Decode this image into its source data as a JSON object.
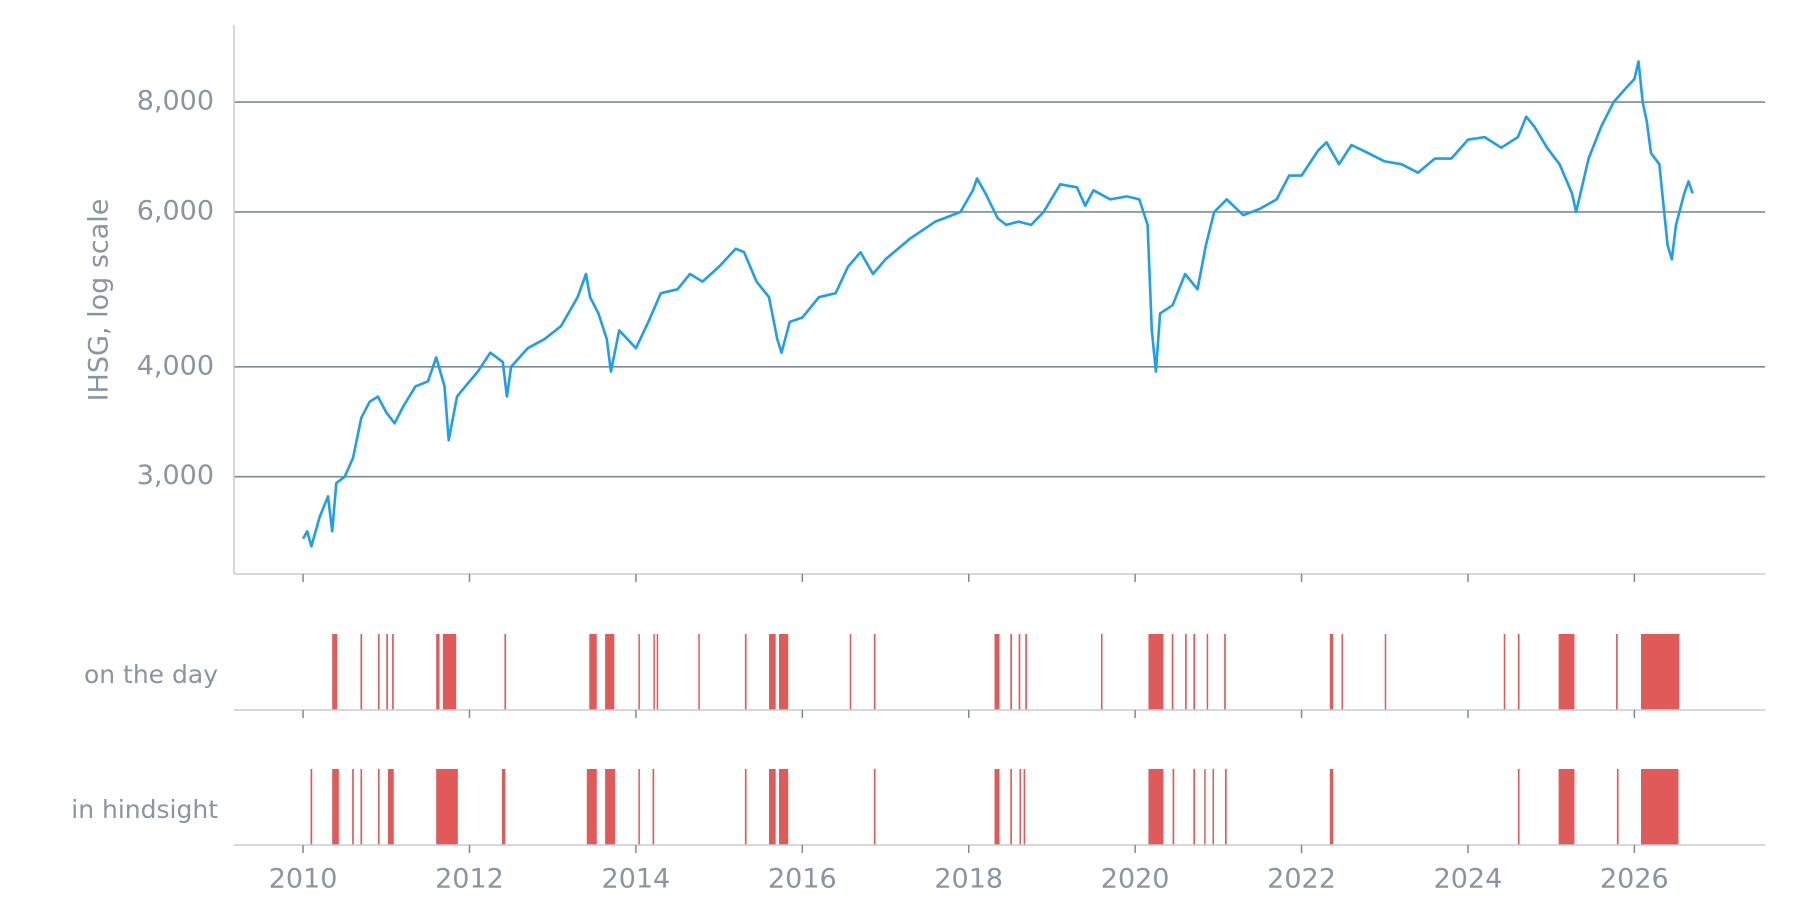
{
  "chart_data": {
    "type": "line",
    "log_y": true,
    "grid": true,
    "ylabel": "IHSG, log scale",
    "xlim": [
      2009.17,
      2027.57
    ],
    "xticks": [
      2010,
      2012,
      2014,
      2016,
      2018,
      2020,
      2022,
      2024,
      2026
    ],
    "ylim": [
      2325,
      9790
    ],
    "yticks": [
      {
        "value": 3000,
        "label": "3,000"
      },
      {
        "value": 4000,
        "label": "4,000"
      },
      {
        "value": 6000,
        "label": "6,000"
      },
      {
        "value": 8000,
        "label": "8,000"
      }
    ],
    "series": [
      {
        "color": "#1f9fe8",
        "x": [
          2010.0,
          2010.05,
          2010.1,
          2010.2,
          2010.3,
          2010.35,
          2010.4,
          2010.5,
          2010.6,
          2010.7,
          2010.8,
          2010.9,
          2011.0,
          2011.1,
          2011.2,
          2011.35,
          2011.5,
          2011.6,
          2011.7,
          2011.75,
          2011.85,
          2011.95,
          2012.1,
          2012.25,
          2012.4,
          2012.45,
          2012.5,
          2012.7,
          2012.9,
          2013.1,
          2013.3,
          2013.4,
          2013.45,
          2013.55,
          2013.65,
          2013.7,
          2013.8,
          2013.95,
          2014.0,
          2014.15,
          2014.3,
          2014.5,
          2014.65,
          2014.8,
          2015.0,
          2015.2,
          2015.3,
          2015.45,
          2015.6,
          2015.7,
          2015.75,
          2015.85,
          2016.0,
          2016.2,
          2016.4,
          2016.55,
          2016.7,
          2016.85,
          2017.0,
          2017.3,
          2017.6,
          2017.9,
          2018.05,
          2018.1,
          2018.2,
          2018.35,
          2018.45,
          2018.6,
          2018.75,
          2018.9,
          2019.1,
          2019.3,
          2019.4,
          2019.5,
          2019.7,
          2019.9,
          2020.05,
          2020.15,
          2020.2,
          2020.25,
          2020.3,
          2020.45,
          2020.6,
          2020.75,
          2020.85,
          2020.95,
          2021.1,
          2021.3,
          2021.5,
          2021.7,
          2021.85,
          2022.0,
          2022.2,
          2022.3,
          2022.45,
          2022.6,
          2022.8,
          2023.0,
          2023.2,
          2023.4,
          2023.6,
          2023.8,
          2024.0,
          2024.2,
          2024.4,
          2024.6,
          2024.7,
          2024.8,
          2024.95,
          2025.1,
          2025.25,
          2025.3,
          2025.45,
          2025.6,
          2025.75,
          2025.9,
          2026.0,
          2026.05,
          2026.1,
          2026.15,
          2026.2,
          2026.3,
          2026.4,
          2026.45,
          2026.5,
          2026.6,
          2026.65,
          2026.7
        ],
        "values": [
          2550,
          2600,
          2500,
          2700,
          2850,
          2600,
          2950,
          3000,
          3150,
          3500,
          3650,
          3700,
          3550,
          3450,
          3600,
          3800,
          3850,
          4100,
          3800,
          3300,
          3700,
          3800,
          3950,
          4150,
          4050,
          3700,
          4000,
          4200,
          4300,
          4450,
          4800,
          5100,
          4800,
          4600,
          4300,
          3950,
          4400,
          4250,
          4200,
          4500,
          4850,
          4900,
          5100,
          5000,
          5200,
          5450,
          5400,
          5000,
          4800,
          4300,
          4150,
          4500,
          4550,
          4800,
          4850,
          5200,
          5400,
          5100,
          5300,
          5600,
          5850,
          6000,
          6350,
          6550,
          6300,
          5900,
          5800,
          5850,
          5800,
          6000,
          6450,
          6400,
          6100,
          6350,
          6200,
          6250,
          6200,
          5800,
          4400,
          3950,
          4600,
          4700,
          5100,
          4900,
          5500,
          6000,
          6200,
          5950,
          6050,
          6200,
          6600,
          6600,
          7050,
          7200,
          6800,
          7150,
          7000,
          6850,
          6800,
          6650,
          6900,
          6900,
          7250,
          7300,
          7100,
          7300,
          7700,
          7500,
          7100,
          6800,
          6300,
          6000,
          6900,
          7500,
          8000,
          8300,
          8500,
          8900,
          8000,
          7600,
          7000,
          6800,
          5500,
          5300,
          5800,
          6300,
          6500,
          6300
        ]
      }
    ],
    "strips": [
      {
        "name": "on the day",
        "color": "#e05a5a",
        "spans": [
          [
            2010.35,
            2010.41
          ],
          [
            2010.69,
            2010.71
          ],
          [
            2010.9,
            2010.92
          ],
          [
            2011.0,
            2011.02
          ],
          [
            2011.07,
            2011.09
          ],
          [
            2011.6,
            2011.64
          ],
          [
            2011.68,
            2011.84
          ],
          [
            2012.42,
            2012.44
          ],
          [
            2013.44,
            2013.53
          ],
          [
            2013.63,
            2013.74
          ],
          [
            2014.03,
            2014.04
          ],
          [
            2014.21,
            2014.22
          ],
          [
            2014.25,
            2014.26
          ],
          [
            2014.75,
            2014.76
          ],
          [
            2015.31,
            2015.33
          ],
          [
            2015.6,
            2015.68
          ],
          [
            2015.72,
            2015.83
          ],
          [
            2016.57,
            2016.58
          ],
          [
            2016.86,
            2016.88
          ],
          [
            2018.31,
            2018.37
          ],
          [
            2018.5,
            2018.52
          ],
          [
            2018.6,
            2018.62
          ],
          [
            2018.68,
            2018.7
          ],
          [
            2019.59,
            2019.6
          ],
          [
            2020.16,
            2020.34
          ],
          [
            2020.44,
            2020.46
          ],
          [
            2020.6,
            2020.62
          ],
          [
            2020.7,
            2020.72
          ],
          [
            2020.86,
            2020.87
          ],
          [
            2021.07,
            2021.09
          ],
          [
            2022.34,
            2022.38
          ],
          [
            2022.48,
            2022.49
          ],
          [
            2023.0,
            2023.01
          ],
          [
            2024.43,
            2024.44
          ],
          [
            2024.6,
            2024.62
          ],
          [
            2025.09,
            2025.28
          ],
          [
            2025.78,
            2025.8
          ],
          [
            2026.08,
            2026.54
          ]
        ]
      },
      {
        "name": "in hindsight",
        "color": "#e05a5a",
        "spans": [
          [
            2010.09,
            2010.11
          ],
          [
            2010.35,
            2010.43
          ],
          [
            2010.59,
            2010.61
          ],
          [
            2010.69,
            2010.71
          ],
          [
            2010.9,
            2010.92
          ],
          [
            2011.02,
            2011.09
          ],
          [
            2011.6,
            2011.86
          ],
          [
            2012.39,
            2012.43
          ],
          [
            2013.41,
            2013.53
          ],
          [
            2013.63,
            2013.75
          ],
          [
            2014.03,
            2014.04
          ],
          [
            2014.2,
            2014.22
          ],
          [
            2015.31,
            2015.33
          ],
          [
            2015.6,
            2015.68
          ],
          [
            2015.72,
            2015.83
          ],
          [
            2016.86,
            2016.88
          ],
          [
            2018.31,
            2018.37
          ],
          [
            2018.5,
            2018.52
          ],
          [
            2018.61,
            2018.62
          ],
          [
            2018.66,
            2018.67
          ],
          [
            2020.16,
            2020.34
          ],
          [
            2020.45,
            2020.47
          ],
          [
            2020.7,
            2020.72
          ],
          [
            2020.83,
            2020.84
          ],
          [
            2020.93,
            2020.94
          ],
          [
            2021.08,
            2021.1
          ],
          [
            2022.34,
            2022.38
          ],
          [
            2024.6,
            2024.62
          ],
          [
            2025.09,
            2025.28
          ],
          [
            2025.79,
            2025.81
          ],
          [
            2026.08,
            2026.53
          ]
        ]
      }
    ]
  }
}
